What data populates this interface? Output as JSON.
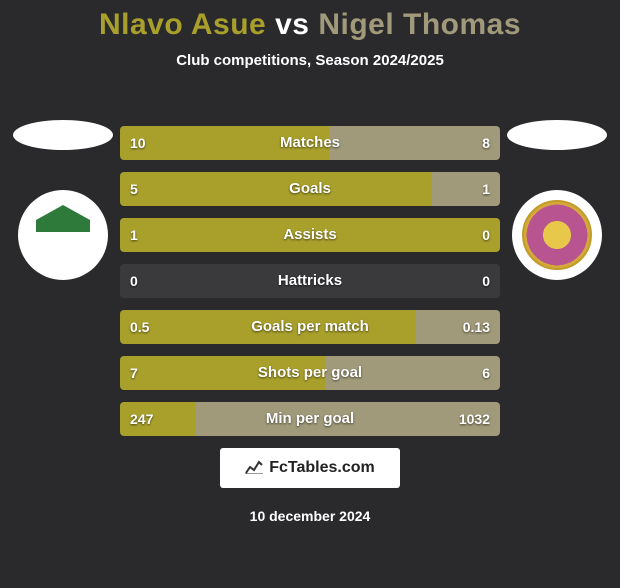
{
  "title": {
    "player1": "Nlavo Asue",
    "vs": "vs",
    "player2": "Nigel Thomas",
    "player1_color": "#a9a02c",
    "player2_color": "#a19a7a"
  },
  "subtitle": "Club competitions, Season 2024/2025",
  "colors": {
    "background": "#2a2a2d",
    "bar_left": "#a9a02c",
    "bar_right": "#a19a7a",
    "bar_bg": "#3a3a3d",
    "text": "#ffffff"
  },
  "stats": [
    {
      "label": "Matches",
      "left_val": "10",
      "right_val": "8",
      "left_pct": 55,
      "right_pct": 45
    },
    {
      "label": "Goals",
      "left_val": "5",
      "right_val": "1",
      "left_pct": 82,
      "right_pct": 18
    },
    {
      "label": "Assists",
      "left_val": "1",
      "right_val": "0",
      "left_pct": 100,
      "right_pct": 0
    },
    {
      "label": "Hattricks",
      "left_val": "0",
      "right_val": "0",
      "left_pct": 0,
      "right_pct": 0
    },
    {
      "label": "Goals per match",
      "left_val": "0.5",
      "right_val": "0.13",
      "left_pct": 78,
      "right_pct": 22
    },
    {
      "label": "Shots per goal",
      "left_val": "7",
      "right_val": "6",
      "left_pct": 54,
      "right_pct": 46
    },
    {
      "label": "Min per goal",
      "left_val": "247",
      "right_val": "1032",
      "left_pct": 20,
      "right_pct": 80
    }
  ],
  "footer": {
    "brand": "FcTables.com",
    "date": "10 december 2024"
  },
  "badges": {
    "left": {
      "name": "moreirense-badge",
      "border_color": "#2d7a3a"
    },
    "right": {
      "name": "nacional-badge"
    }
  }
}
